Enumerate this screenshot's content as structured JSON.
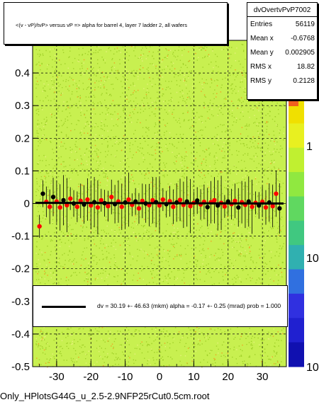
{
  "chart_data": {
    "type": "scatter",
    "title": "<(v - vP)/tvP> versus   vP => alpha for barrel 4, layer 7 ladder 2, all wafers",
    "xlabel": "",
    "ylabel": "",
    "xlim": [
      -37,
      37
    ],
    "ylim": [
      -0.5,
      0.5
    ],
    "x_ticks": [
      "-30",
      "-20",
      "-10",
      "0",
      "10",
      "20",
      "30"
    ],
    "y_ticks": [
      "-0.5",
      "-0.4",
      "-0.3",
      "-0.2",
      "-0.1",
      "0",
      "0.1",
      "0.2",
      "0.3",
      "0.4"
    ],
    "colorbar_ticks": [
      "1",
      "10",
      "10"
    ],
    "grid": true,
    "colors": {
      "background_fill": "#c8f050",
      "histogram_dots": "#a0d028",
      "profile_points": "#ff0000",
      "profile_errors": "#000000",
      "fit_line": "#000000"
    },
    "profile_means": [
      {
        "x": -35,
        "y": -0.07
      },
      {
        "x": -34,
        "y": 0.03
      },
      {
        "x": -33,
        "y": 0.005
      },
      {
        "x": -32,
        "y": -0.01
      },
      {
        "x": -31,
        "y": 0.02
      },
      {
        "x": -30,
        "y": 0.006
      },
      {
        "x": -29,
        "y": -0.012
      },
      {
        "x": -28,
        "y": 0.01
      },
      {
        "x": -27,
        "y": -0.005
      },
      {
        "x": -26,
        "y": 0.015
      },
      {
        "x": -25,
        "y": 0.0
      },
      {
        "x": -24,
        "y": -0.01
      },
      {
        "x": -23,
        "y": 0.008
      },
      {
        "x": -22,
        "y": -0.003
      },
      {
        "x": -21,
        "y": 0.012
      },
      {
        "x": -20,
        "y": -0.006
      },
      {
        "x": -19,
        "y": 0.004
      },
      {
        "x": -18,
        "y": -0.012
      },
      {
        "x": -17,
        "y": 0.01
      },
      {
        "x": -16,
        "y": 0.001
      },
      {
        "x": -15,
        "y": -0.008
      },
      {
        "x": -14,
        "y": 0.02
      },
      {
        "x": -13,
        "y": -0.002
      },
      {
        "x": -12,
        "y": 0.006
      },
      {
        "x": -11,
        "y": -0.01
      },
      {
        "x": -10,
        "y": 0.003
      },
      {
        "x": -9,
        "y": 0.012
      },
      {
        "x": -8,
        "y": -0.004
      },
      {
        "x": -7,
        "y": 0.006
      },
      {
        "x": -6,
        "y": -0.015
      },
      {
        "x": -5,
        "y": 0.008
      },
      {
        "x": -4,
        "y": 0.0
      },
      {
        "x": -3,
        "y": -0.005
      },
      {
        "x": -2,
        "y": 0.01
      },
      {
        "x": -1,
        "y": 0.004
      },
      {
        "x": 0,
        "y": -0.006
      },
      {
        "x": 1,
        "y": 0.012
      },
      {
        "x": 2,
        "y": -0.002
      },
      {
        "x": 3,
        "y": 0.007
      },
      {
        "x": 4,
        "y": -0.01
      },
      {
        "x": 5,
        "y": 0.003
      },
      {
        "x": 6,
        "y": 0.011
      },
      {
        "x": 7,
        "y": -0.004
      },
      {
        "x": 8,
        "y": 0.006
      },
      {
        "x": 9,
        "y": -0.008
      },
      {
        "x": 10,
        "y": 0.002
      },
      {
        "x": 11,
        "y": 0.009
      },
      {
        "x": 12,
        "y": -0.003
      },
      {
        "x": 13,
        "y": 0.005
      },
      {
        "x": 14,
        "y": -0.011
      },
      {
        "x": 15,
        "y": 0.004
      },
      {
        "x": 16,
        "y": 0.01
      },
      {
        "x": 17,
        "y": -0.006
      },
      {
        "x": 18,
        "y": 0.002
      },
      {
        "x": 19,
        "y": -0.009
      },
      {
        "x": 20,
        "y": 0.006
      },
      {
        "x": 21,
        "y": -0.002
      },
      {
        "x": 22,
        "y": 0.008
      },
      {
        "x": 23,
        "y": -0.012
      },
      {
        "x": 24,
        "y": 0.004
      },
      {
        "x": 25,
        "y": -0.004
      },
      {
        "x": 26,
        "y": 0.006
      },
      {
        "x": 27,
        "y": -0.01
      },
      {
        "x": 28,
        "y": 0.002
      },
      {
        "x": 29,
        "y": -0.006
      },
      {
        "x": 30,
        "y": 0.005
      },
      {
        "x": 31,
        "y": -0.012
      },
      {
        "x": 32,
        "y": 0.003
      },
      {
        "x": 33,
        "y": -0.008
      },
      {
        "x": 34,
        "y": 0.03
      },
      {
        "x": 35,
        "y": -0.015
      }
    ]
  },
  "stats": {
    "name": "dvOvertvPvP7002",
    "entries_label": "Entries",
    "entries_value": "56119",
    "mean_x_label": "Mean x",
    "mean_x_value": "-0.6768",
    "mean_y_label": "Mean y",
    "mean_y_value": "0.002905",
    "rms_x_label": "RMS x",
    "rms_x_value": "18.82",
    "rms_y_label": "RMS y",
    "rms_y_value": "0.2128"
  },
  "fit": {
    "text": "dv =   30.19 +- 46.63 (mkm) alpha =   -0.17 +-  0.25 (mrad) prob = 1.000"
  },
  "footer": {
    "filename": "Only_HPlotsG44G_u_2.5-2.9NFP25rCut0.5cm.root"
  }
}
